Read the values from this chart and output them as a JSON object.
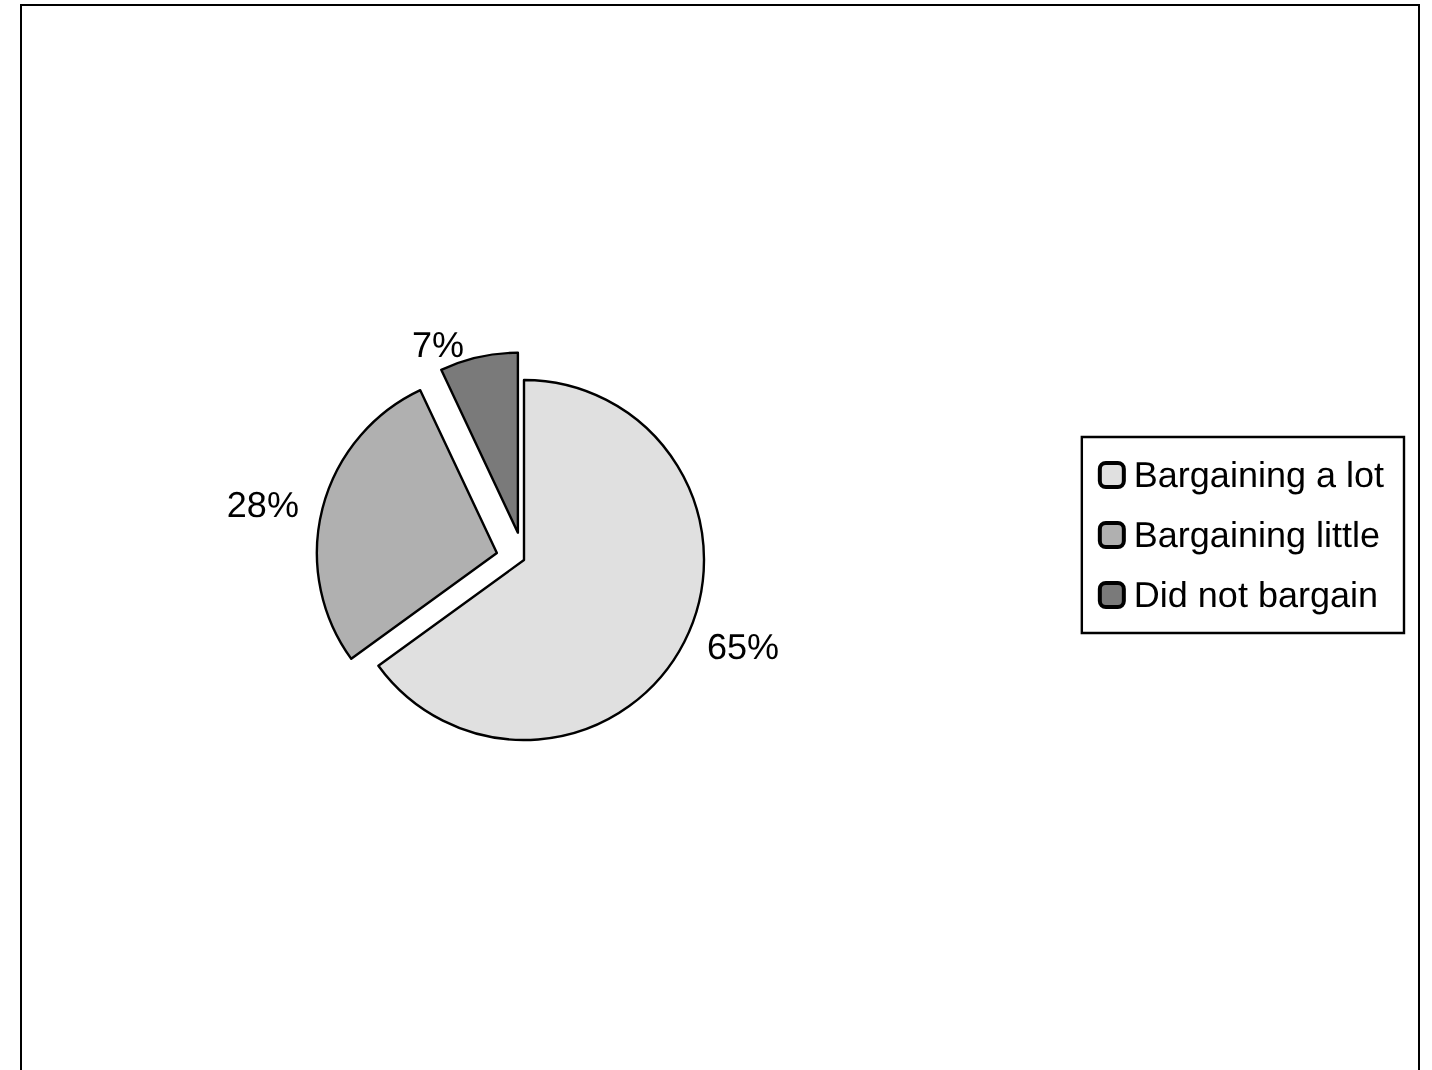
{
  "chart_data": {
    "type": "pie",
    "categories": [
      "Bargaining a lot",
      "Bargaining little",
      "Did not bargain"
    ],
    "values": [
      65,
      28,
      7
    ],
    "colors": [
      "#e0e0e0",
      "#b0b0b0",
      "#7a7a7a"
    ],
    "value_labels": [
      "65%",
      "28%",
      "7%"
    ],
    "legend": "right"
  }
}
